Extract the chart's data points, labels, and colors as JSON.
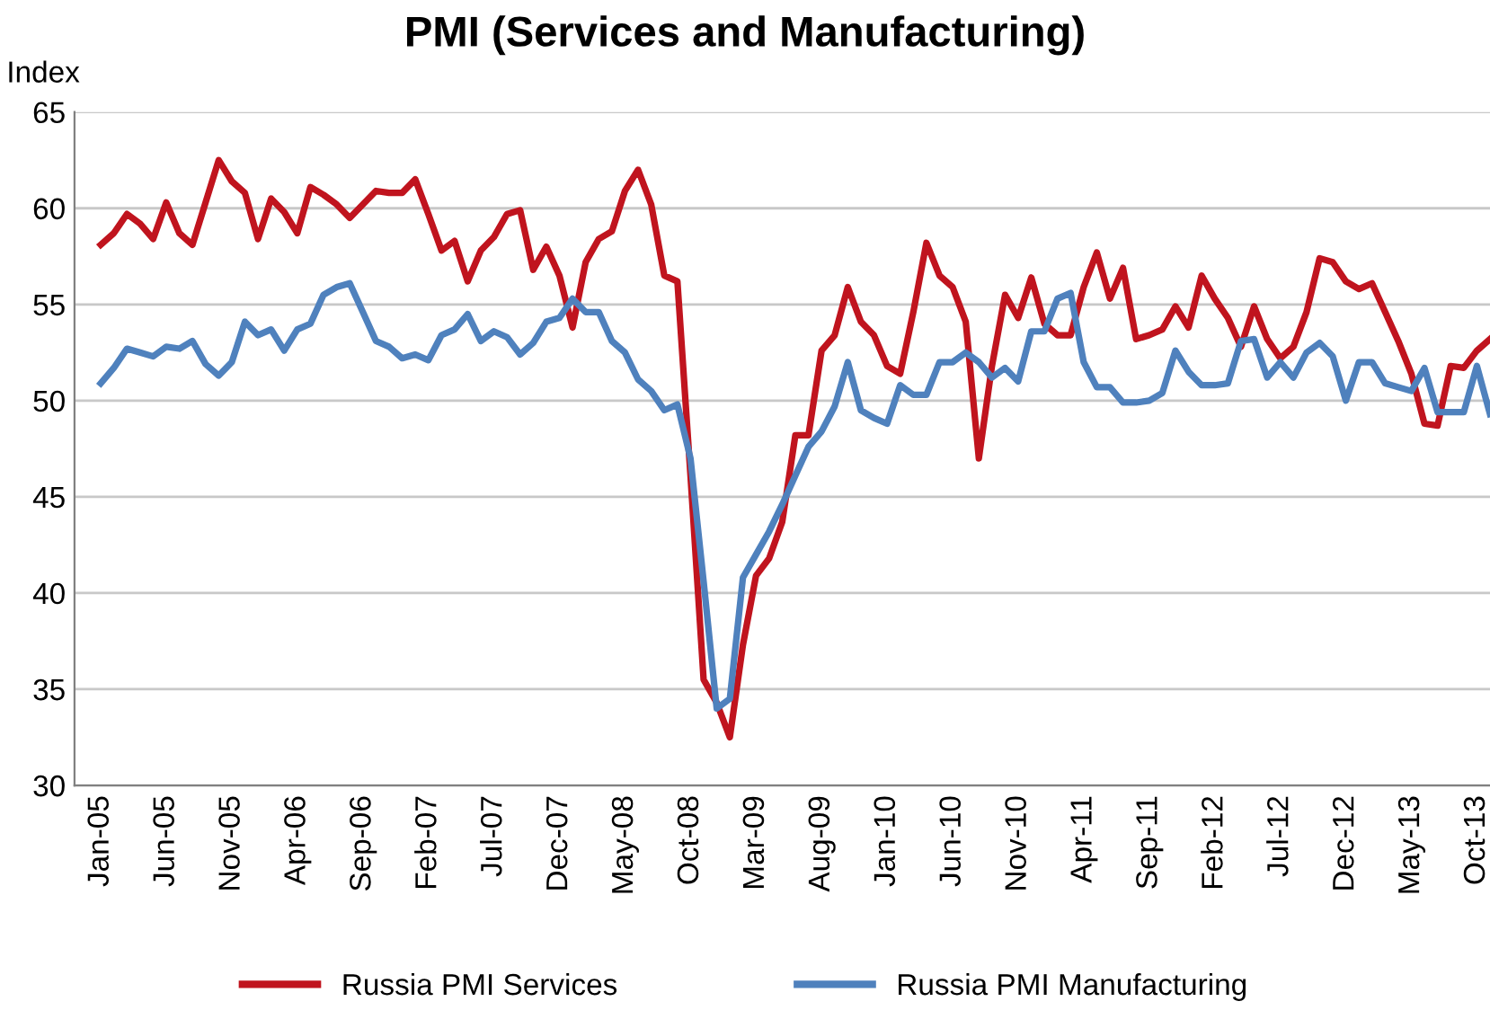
{
  "chart_data": {
    "type": "line",
    "title": "PMI (Services and Manufacturing)",
    "ylabel": "Index",
    "categories": [
      "Jan-05",
      null,
      null,
      null,
      null,
      "Jun-05",
      null,
      null,
      null,
      null,
      "Nov-05",
      null,
      null,
      null,
      null,
      "Apr-06",
      null,
      null,
      null,
      null,
      "Sep-06",
      null,
      null,
      null,
      null,
      "Feb-07",
      null,
      null,
      null,
      null,
      "Jul-07",
      null,
      null,
      null,
      null,
      "Dec-07",
      null,
      null,
      null,
      null,
      "May-08",
      null,
      null,
      null,
      null,
      "Oct-08",
      null,
      null,
      null,
      null,
      "Mar-09",
      null,
      null,
      null,
      null,
      "Aug-09",
      null,
      null,
      null,
      null,
      "Jan-10",
      null,
      null,
      null,
      null,
      "Jun-10",
      null,
      null,
      null,
      null,
      "Nov-10",
      null,
      null,
      null,
      null,
      "Apr-11",
      null,
      null,
      null,
      null,
      "Sep-11",
      null,
      null,
      null,
      null,
      "Feb-12",
      null,
      null,
      null,
      null,
      "Jul-12",
      null,
      null,
      null,
      null,
      "Dec-12",
      null,
      null,
      null,
      null,
      "May-13",
      null,
      null,
      null,
      null,
      "Oct-13",
      null
    ],
    "series": [
      {
        "name": "Russia PMI Services",
        "color": "#c0141e",
        "values": [
          58.1,
          58.7,
          59.7,
          59.2,
          58.4,
          60.3,
          58.7,
          58.1,
          60.3,
          62.5,
          61.4,
          60.8,
          58.4,
          60.5,
          59.8,
          58.7,
          61.1,
          60.7,
          60.2,
          59.5,
          60.2,
          60.9,
          60.8,
          60.8,
          61.5,
          59.7,
          57.8,
          58.3,
          56.2,
          57.8,
          58.5,
          59.7,
          59.9,
          56.8,
          58.0,
          56.5,
          53.8,
          57.2,
          58.4,
          58.8,
          60.9,
          62.0,
          60.2,
          56.5,
          56.2,
          46.1,
          35.5,
          34.3,
          32.5,
          37.3,
          40.9,
          41.8,
          43.7,
          48.2,
          48.2,
          52.6,
          53.4,
          55.9,
          54.1,
          53.4,
          51.8,
          51.4,
          54.6,
          58.2,
          56.5,
          55.9,
          54.1,
          47.0,
          51.8,
          55.5,
          54.3,
          56.4,
          54.0,
          53.4,
          53.4,
          55.9,
          57.7,
          55.3,
          56.9,
          53.2,
          53.4,
          53.7,
          54.9,
          53.8,
          56.5,
          55.3,
          54.3,
          52.8,
          54.9,
          53.2,
          52.2,
          52.8,
          54.6,
          57.4,
          57.2,
          56.2,
          55.8,
          56.1,
          54.6,
          53.1,
          51.4,
          48.8,
          48.7,
          51.8,
          51.7,
          52.6,
          53.2
        ]
      },
      {
        "name": "Russia PMI Manufacturing",
        "color": "#4f81bd",
        "values": [
          50.9,
          51.7,
          52.7,
          52.5,
          52.3,
          52.8,
          52.7,
          53.1,
          51.9,
          51.3,
          52.0,
          54.1,
          53.4,
          53.7,
          52.6,
          53.7,
          54.0,
          55.5,
          55.9,
          56.1,
          54.6,
          53.1,
          52.8,
          52.2,
          52.4,
          52.1,
          53.4,
          53.7,
          54.5,
          53.1,
          53.6,
          53.3,
          52.4,
          53.0,
          54.1,
          54.3,
          55.3,
          54.6,
          54.6,
          53.1,
          52.5,
          51.1,
          50.5,
          49.5,
          49.8,
          47.0,
          40.6,
          34.0,
          34.5,
          40.8,
          42.0,
          43.2,
          44.6,
          46.1,
          47.6,
          48.4,
          49.7,
          52.0,
          49.5,
          49.1,
          48.8,
          50.8,
          50.3,
          50.3,
          52.0,
          52.0,
          52.5,
          52.0,
          51.2,
          51.7,
          51.0,
          53.6,
          53.6,
          55.3,
          55.6,
          52.0,
          50.7,
          50.7,
          49.9,
          49.9,
          50.0,
          50.4,
          52.6,
          51.5,
          50.8,
          50.8,
          50.9,
          53.1,
          53.2,
          51.2,
          52.0,
          51.2,
          52.5,
          53.0,
          52.3,
          50.0,
          52.0,
          52.0,
          50.9,
          50.7,
          50.5,
          51.7,
          49.4,
          49.4,
          49.4,
          51.8,
          49.3
        ]
      }
    ],
    "ylim": [
      30,
      65
    ],
    "yticks": [
      30,
      35,
      40,
      45,
      50,
      55,
      60,
      65
    ],
    "grid": "y",
    "legend": "bottom",
    "marker": "none",
    "line_style": "solid"
  }
}
